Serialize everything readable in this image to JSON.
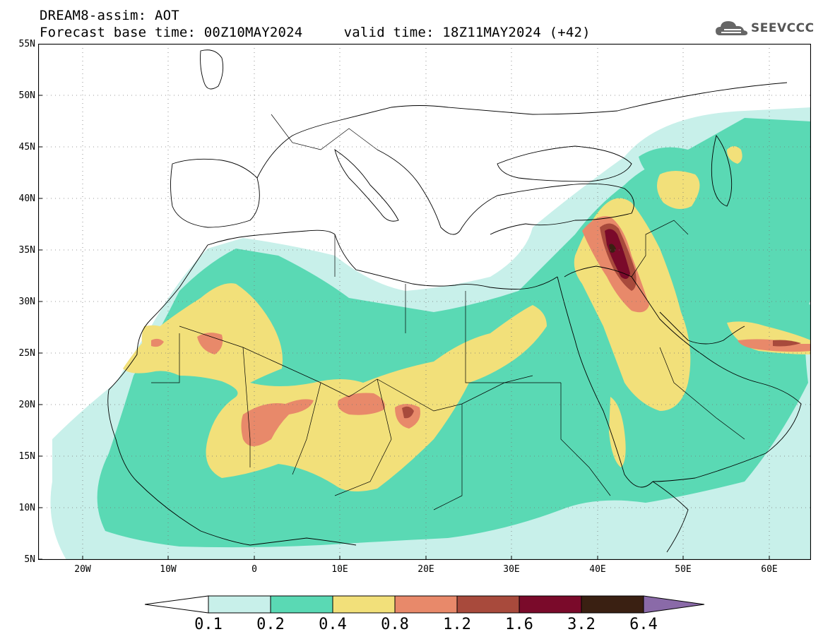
{
  "header": {
    "line1": "DREAM8-assim: AOT",
    "line2": "Forecast base time: 00Z10MAY2024     valid time: 18Z11MAY2024 (+42)"
  },
  "logo": {
    "text": "SEEVCCC",
    "icon": "cloud-icon",
    "color": "#555555"
  },
  "map": {
    "lat_labels": [
      "55N",
      "50N",
      "45N",
      "40N",
      "35N",
      "30N",
      "25N",
      "20N",
      "15N",
      "10N",
      "5N"
    ],
    "lon_labels": [
      "20W",
      "10W",
      "0",
      "10E",
      "20E",
      "30E",
      "40E",
      "50E",
      "60E"
    ],
    "lat_range": [
      5,
      55
    ],
    "lon_range": [
      -25,
      65
    ],
    "grid": "dotted"
  },
  "colorbar": {
    "labels": [
      "0.1",
      "0.2",
      "0.4",
      "0.8",
      "1.2",
      "1.6",
      "3.2",
      "6.4"
    ],
    "colors": [
      "#c8f0ea",
      "#5ad9b4",
      "#f2e07a",
      "#e8896a",
      "#a84a3c",
      "#7a0a2a",
      "#3a2012",
      "#8a6aa8"
    ]
  }
}
